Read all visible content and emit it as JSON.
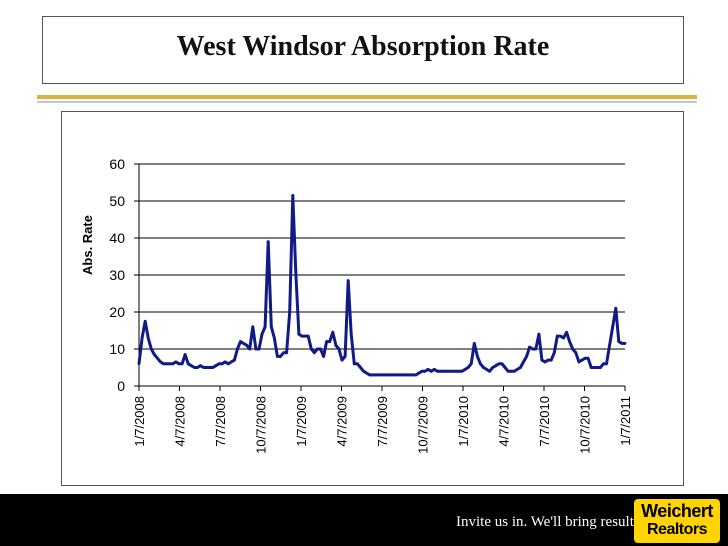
{
  "header": {
    "title": "West Windsor Absorption Rate"
  },
  "footer": {
    "tagline": "Invite us in. We'll bring results.",
    "logo_line1": "Weichert",
    "logo_line2": "Realtors"
  },
  "colors": {
    "line": "#101b86",
    "accent_rule": "#d9b343",
    "footer_bg": "#000000",
    "logo_bg": "#ffd400"
  },
  "chart_data": {
    "type": "line",
    "title": "",
    "xlabel": "",
    "ylabel": "Abs. Rate",
    "ylim": [
      0,
      60
    ],
    "yticks": [
      0,
      10,
      20,
      30,
      40,
      50,
      60
    ],
    "grid": true,
    "legend": "none",
    "xtick_labels": [
      "1/7/2008",
      "4/7/2008",
      "7/7/2008",
      "10/7/2008",
      "1/7/2009",
      "4/7/2009",
      "7/7/2009",
      "10/7/2009",
      "1/7/2010",
      "4/7/2010",
      "7/7/2010",
      "10/7/2010",
      "1/7/2011"
    ],
    "series": [
      {
        "name": "",
        "color": "#101b86",
        "points": [
          [
            "2008-01-07",
            6
          ],
          [
            "2008-01-14",
            13
          ],
          [
            "2008-01-21",
            17.5
          ],
          [
            "2008-01-28",
            13
          ],
          [
            "2008-02-04",
            10
          ],
          [
            "2008-02-11",
            8.5
          ],
          [
            "2008-02-18",
            7.5
          ],
          [
            "2008-02-25",
            6.5
          ],
          [
            "2008-03-03",
            6
          ],
          [
            "2008-03-10",
            6
          ],
          [
            "2008-03-17",
            6
          ],
          [
            "2008-03-24",
            6
          ],
          [
            "2008-03-31",
            6.5
          ],
          [
            "2008-04-07",
            6
          ],
          [
            "2008-04-14",
            6
          ],
          [
            "2008-04-21",
            8.5
          ],
          [
            "2008-04-28",
            6
          ],
          [
            "2008-05-05",
            5.5
          ],
          [
            "2008-05-12",
            5
          ],
          [
            "2008-05-19",
            5
          ],
          [
            "2008-05-26",
            5.5
          ],
          [
            "2008-06-02",
            5
          ],
          [
            "2008-06-09",
            5
          ],
          [
            "2008-06-16",
            5
          ],
          [
            "2008-06-23",
            5
          ],
          [
            "2008-06-30",
            5.5
          ],
          [
            "2008-07-07",
            6
          ],
          [
            "2008-07-14",
            6
          ],
          [
            "2008-07-21",
            6.5
          ],
          [
            "2008-07-28",
            6
          ],
          [
            "2008-08-04",
            6.5
          ],
          [
            "2008-08-11",
            7
          ],
          [
            "2008-08-18",
            10
          ],
          [
            "2008-08-25",
            12
          ],
          [
            "2008-09-01",
            11.5
          ],
          [
            "2008-09-08",
            11
          ],
          [
            "2008-09-15",
            10
          ],
          [
            "2008-09-22",
            16
          ],
          [
            "2008-09-29",
            10
          ],
          [
            "2008-10-06",
            10
          ],
          [
            "2008-10-13",
            14
          ],
          [
            "2008-10-20",
            16
          ],
          [
            "2008-10-27",
            39
          ],
          [
            "2008-11-03",
            16
          ],
          [
            "2008-11-10",
            13
          ],
          [
            "2008-11-17",
            8
          ],
          [
            "2008-11-24",
            8
          ],
          [
            "2008-12-01",
            9
          ],
          [
            "2008-12-08",
            9
          ],
          [
            "2008-12-15",
            20
          ],
          [
            "2008-12-22",
            51.5
          ],
          [
            "2008-12-29",
            30
          ],
          [
            "2009-01-05",
            14
          ],
          [
            "2009-01-12",
            13.5
          ],
          [
            "2009-01-19",
            13.5
          ],
          [
            "2009-01-26",
            13.5
          ],
          [
            "2009-02-02",
            10
          ],
          [
            "2009-02-09",
            9
          ],
          [
            "2009-02-16",
            10
          ],
          [
            "2009-02-23",
            10
          ],
          [
            "2009-03-02",
            8
          ],
          [
            "2009-03-09",
            12
          ],
          [
            "2009-03-16",
            12
          ],
          [
            "2009-03-23",
            14.5
          ],
          [
            "2009-03-30",
            11
          ],
          [
            "2009-04-06",
            10
          ],
          [
            "2009-04-13",
            7
          ],
          [
            "2009-04-20",
            8
          ],
          [
            "2009-04-27",
            28.5
          ],
          [
            "2009-05-04",
            14
          ],
          [
            "2009-05-11",
            6
          ],
          [
            "2009-05-18",
            6
          ],
          [
            "2009-05-25",
            5
          ],
          [
            "2009-06-01",
            4
          ],
          [
            "2009-06-08",
            3.5
          ],
          [
            "2009-06-15",
            3
          ],
          [
            "2009-06-22",
            3
          ],
          [
            "2009-06-29",
            3
          ],
          [
            "2009-07-06",
            3
          ],
          [
            "2009-07-13",
            3
          ],
          [
            "2009-07-20",
            3
          ],
          [
            "2009-07-27",
            3
          ],
          [
            "2009-08-03",
            3
          ],
          [
            "2009-08-10",
            3
          ],
          [
            "2009-08-17",
            3
          ],
          [
            "2009-08-24",
            3
          ],
          [
            "2009-08-31",
            3
          ],
          [
            "2009-09-07",
            3
          ],
          [
            "2009-09-14",
            3
          ],
          [
            "2009-09-21",
            3
          ],
          [
            "2009-09-28",
            3
          ],
          [
            "2009-10-05",
            3.5
          ],
          [
            "2009-10-12",
            4
          ],
          [
            "2009-10-19",
            4
          ],
          [
            "2009-10-26",
            4.5
          ],
          [
            "2009-11-02",
            4
          ],
          [
            "2009-11-09",
            4.5
          ],
          [
            "2009-11-16",
            4
          ],
          [
            "2009-11-23",
            4
          ],
          [
            "2009-11-30",
            4
          ],
          [
            "2009-12-07",
            4
          ],
          [
            "2009-12-14",
            4
          ],
          [
            "2009-12-21",
            4
          ],
          [
            "2009-12-28",
            4
          ],
          [
            "2010-01-04",
            4
          ],
          [
            "2010-01-11",
            4
          ],
          [
            "2010-01-18",
            4.5
          ],
          [
            "2010-01-25",
            5
          ],
          [
            "2010-02-01",
            6
          ],
          [
            "2010-02-08",
            11.5
          ],
          [
            "2010-02-15",
            8
          ],
          [
            "2010-02-22",
            6
          ],
          [
            "2010-03-01",
            5
          ],
          [
            "2010-03-08",
            4.5
          ],
          [
            "2010-03-15",
            4
          ],
          [
            "2010-03-22",
            5
          ],
          [
            "2010-03-29",
            5.5
          ],
          [
            "2010-04-05",
            6
          ],
          [
            "2010-04-12",
            6
          ],
          [
            "2010-04-19",
            5
          ],
          [
            "2010-04-26",
            4
          ],
          [
            "2010-05-03",
            4
          ],
          [
            "2010-05-10",
            4
          ],
          [
            "2010-05-17",
            4.5
          ],
          [
            "2010-05-24",
            5
          ],
          [
            "2010-05-31",
            6.5
          ],
          [
            "2010-06-07",
            8
          ],
          [
            "2010-06-14",
            10.5
          ],
          [
            "2010-06-21",
            10
          ],
          [
            "2010-06-28",
            10
          ],
          [
            "2010-07-05",
            14
          ],
          [
            "2010-07-12",
            7
          ],
          [
            "2010-07-19",
            6.5
          ],
          [
            "2010-07-26",
            7
          ],
          [
            "2010-08-02",
            7
          ],
          [
            "2010-08-09",
            9
          ],
          [
            "2010-08-16",
            13.5
          ],
          [
            "2010-08-23",
            13.5
          ],
          [
            "2010-08-30",
            13
          ],
          [
            "2010-09-06",
            14.5
          ],
          [
            "2010-09-13",
            12
          ],
          [
            "2010-09-20",
            10
          ],
          [
            "2010-09-27",
            9
          ],
          [
            "2010-10-04",
            6.5
          ],
          [
            "2010-10-11",
            7
          ],
          [
            "2010-10-18",
            7.5
          ],
          [
            "2010-10-25",
            7.5
          ],
          [
            "2010-11-01",
            5
          ],
          [
            "2010-11-08",
            5
          ],
          [
            "2010-11-15",
            5
          ],
          [
            "2010-11-22",
            5
          ],
          [
            "2010-11-29",
            6
          ],
          [
            "2010-12-06",
            6
          ],
          [
            "2010-12-13",
            11
          ],
          [
            "2010-12-20",
            16
          ],
          [
            "2010-12-27",
            21
          ],
          [
            "2011-01-03",
            12
          ],
          [
            "2011-01-10",
            11.5
          ],
          [
            "2011-01-17",
            11.5
          ]
        ]
      }
    ]
  }
}
